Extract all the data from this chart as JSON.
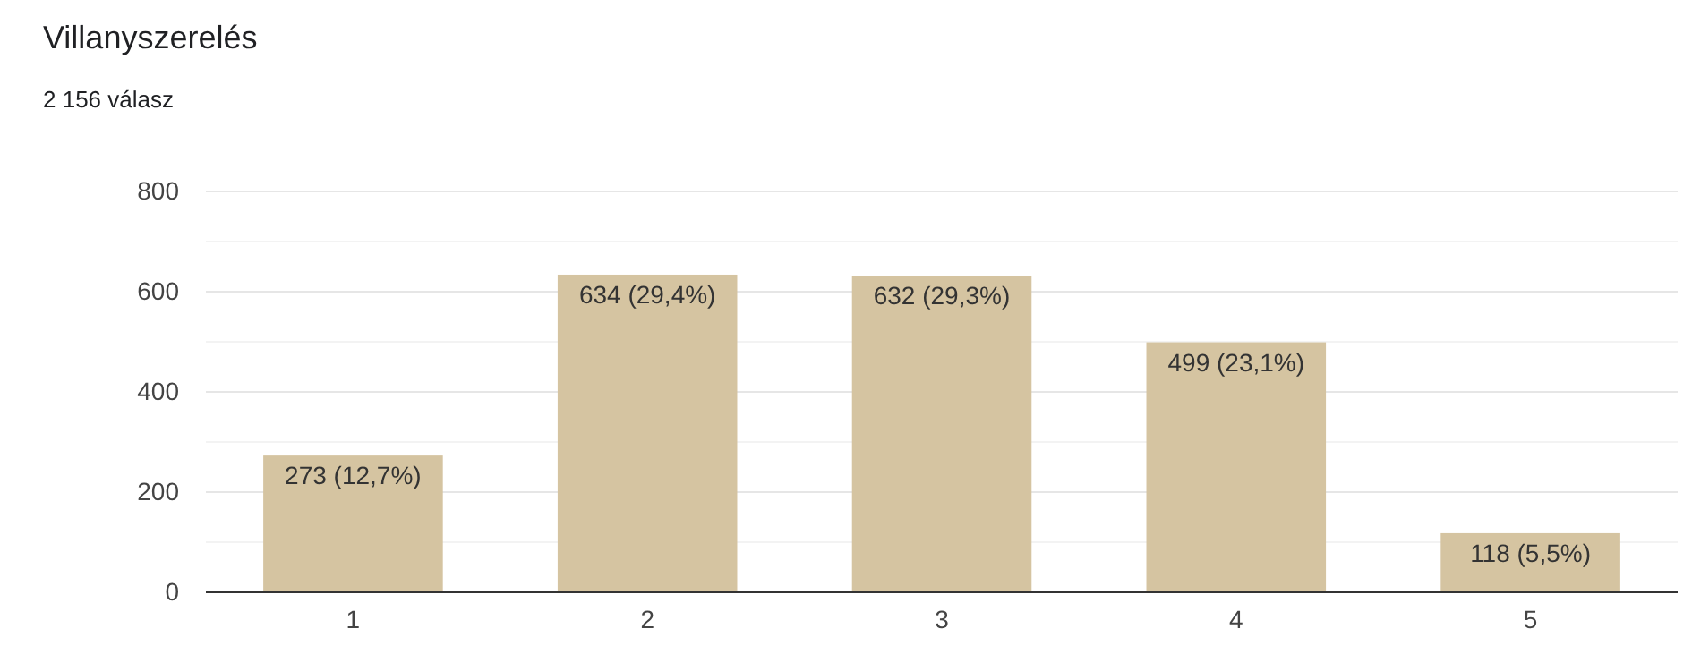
{
  "chart_data": {
    "type": "bar",
    "title": "Villanyszerelés",
    "subtitle": "2 156 válasz",
    "categories": [
      "1",
      "2",
      "3",
      "4",
      "5"
    ],
    "values": [
      273,
      634,
      632,
      499,
      118
    ],
    "value_labels": [
      "273 (12,7%)",
      "634 (29,4%)",
      "632 (29,3%)",
      "499 (23,1%)",
      "118 (5,5%)"
    ],
    "color": "#d5c4a1",
    "ylim": [
      0,
      800
    ],
    "yticks": [
      0,
      {
        "value": 100,
        "label": null
      },
      200,
      {
        "value": 300,
        "label": null
      },
      400,
      {
        "value": 500,
        "label": null
      },
      600,
      {
        "value": 700,
        "label": null
      },
      800
    ],
    "grid": "y"
  }
}
